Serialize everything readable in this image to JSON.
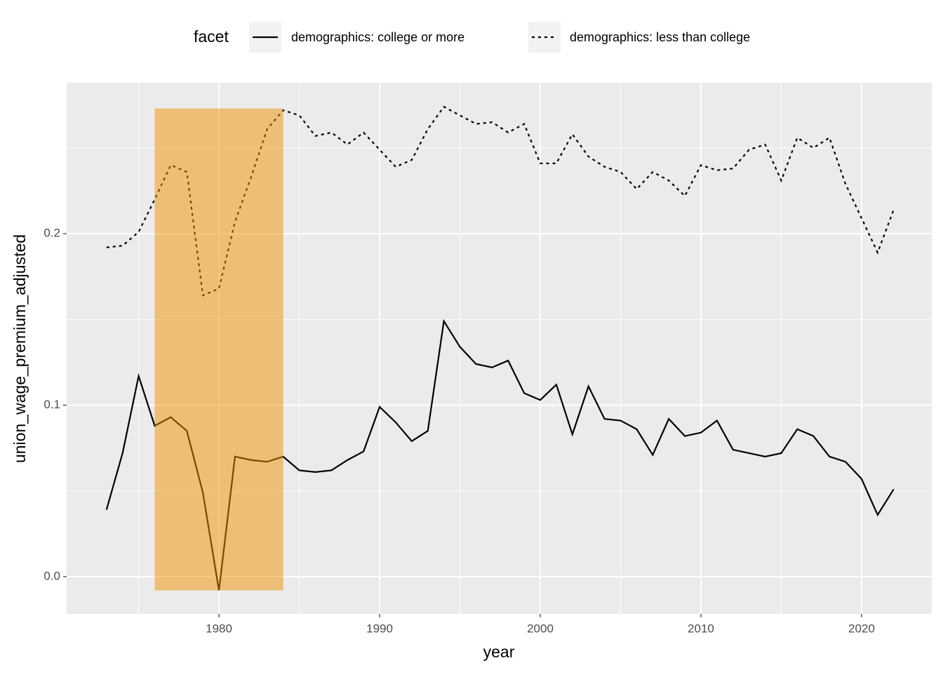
{
  "chart_data": {
    "type": "line",
    "x": [
      1973,
      1974,
      1975,
      1976,
      1977,
      1978,
      1979,
      1980,
      1981,
      1982,
      1983,
      1984,
      1985,
      1986,
      1987,
      1988,
      1989,
      1990,
      1991,
      1992,
      1993,
      1994,
      1995,
      1996,
      1997,
      1998,
      1999,
      2000,
      2001,
      2002,
      2003,
      2004,
      2005,
      2006,
      2007,
      2008,
      2009,
      2010,
      2011,
      2012,
      2013,
      2014,
      2015,
      2016,
      2017,
      2018,
      2019,
      2020,
      2021,
      2022
    ],
    "series": [
      {
        "name": "demographics: college or more",
        "color": "#000000",
        "dash": "solid",
        "values": [
          0.039,
          0.072,
          0.117,
          0.088,
          0.093,
          0.085,
          0.049,
          -0.008,
          0.07,
          0.068,
          0.067,
          0.07,
          0.062,
          0.061,
          0.062,
          0.068,
          0.073,
          0.099,
          0.09,
          0.079,
          0.085,
          0.149,
          0.134,
          0.124,
          0.122,
          0.126,
          0.107,
          0.103,
          0.112,
          0.083,
          0.111,
          0.092,
          0.091,
          0.086,
          0.071,
          0.092,
          0.082,
          0.084,
          0.091,
          0.074,
          0.072,
          0.07,
          0.072,
          0.086,
          0.082,
          0.07,
          0.067,
          0.057,
          0.036,
          0.051
        ]
      },
      {
        "name": "demographics: less than college",
        "color": "#000000",
        "dash": "dotted",
        "values": [
          0.192,
          0.193,
          0.201,
          0.22,
          0.24,
          0.236,
          0.164,
          0.168,
          0.207,
          0.233,
          0.261,
          0.272,
          0.269,
          0.257,
          0.259,
          0.252,
          0.259,
          0.249,
          0.239,
          0.243,
          0.261,
          0.274,
          0.269,
          0.264,
          0.265,
          0.259,
          0.264,
          0.241,
          0.241,
          0.258,
          0.245,
          0.239,
          0.236,
          0.226,
          0.236,
          0.231,
          0.222,
          0.24,
          0.237,
          0.238,
          0.249,
          0.252,
          0.231,
          0.256,
          0.25,
          0.256,
          0.229,
          0.209,
          0.189,
          0.214
        ]
      }
    ],
    "x_label": "year",
    "y_label": "union_wage_premium_adjusted",
    "legend_title": "facet",
    "legend_position": "top",
    "xlim": [
      1970.52,
      2024.37
    ],
    "xticks": [
      1980,
      1990,
      2000,
      2010,
      2020
    ],
    "xticks_minor": [
      1975,
      1985,
      1995,
      2005,
      2015
    ],
    "ylim": [
      -0.0217,
      0.288
    ],
    "yticks": [
      {
        "value": 0,
        "label": "0.0"
      },
      0.1,
      0.2
    ],
    "yticks_minor": [
      0.05,
      0.15,
      0.25
    ],
    "grid": true,
    "highlight": {
      "x": [
        1976,
        1984
      ],
      "y": [
        -0.008,
        0.273
      ],
      "color": "#f09100",
      "opacity": 0.5
    }
  }
}
